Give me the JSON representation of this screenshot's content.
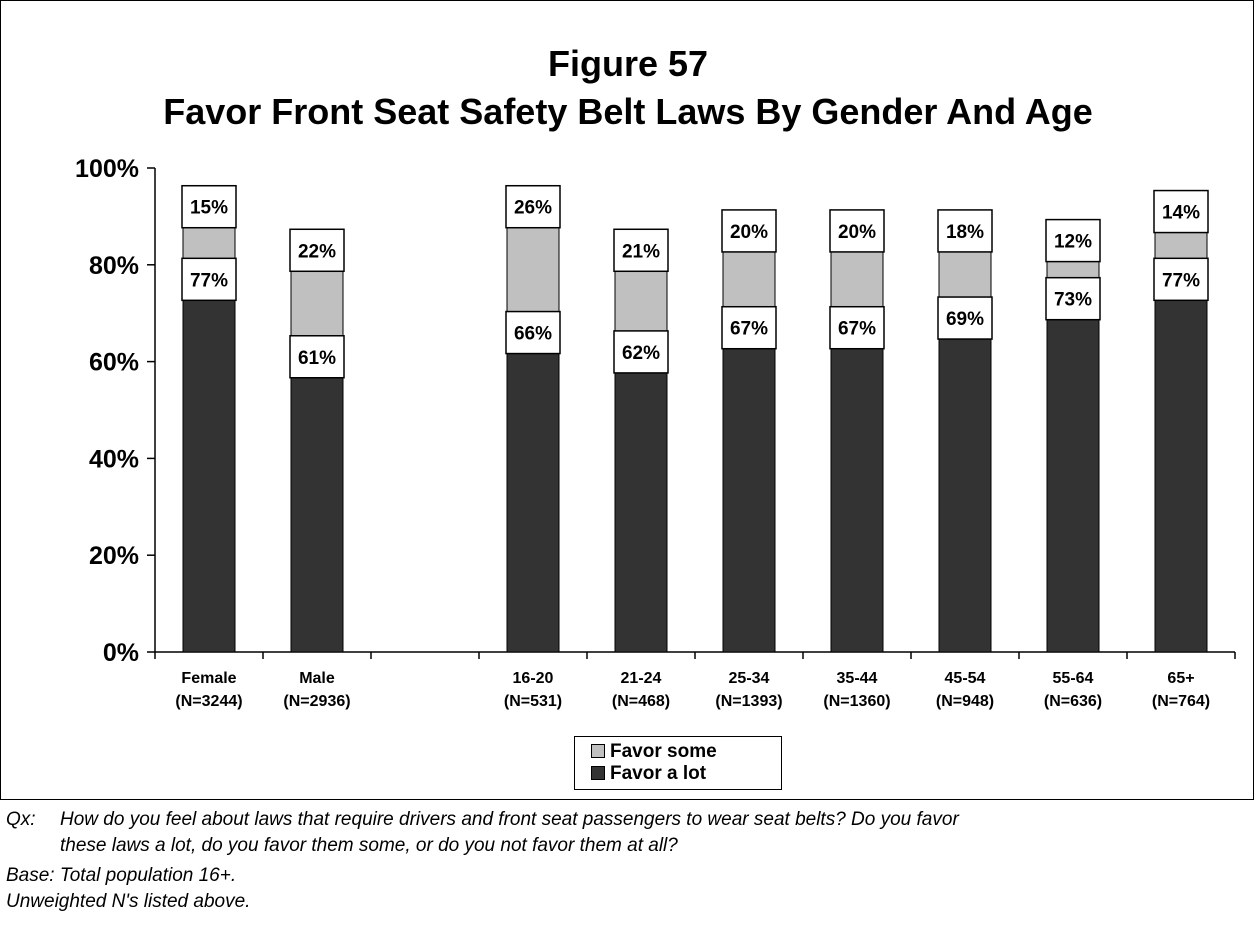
{
  "header": {
    "title_line1": "Figure 57",
    "title_line2": "Favor Front Seat Safety Belt Laws By Gender And Age"
  },
  "legend": {
    "items": [
      {
        "label": "Favor some",
        "color": "#c0c0c0"
      },
      {
        "label": "Favor a lot",
        "color": "#333333"
      }
    ]
  },
  "notes": {
    "q_label": "Qx:",
    "q_text_line1": "How do you feel about laws that require drivers and front seat passengers to wear seat belts?  Do you favor",
    "q_text_line2": "these laws a lot, do you favor them some, or do you not favor them at all?",
    "base": "Base:  Total population 16+.",
    "unweighted": "Unweighted N's listed above."
  },
  "chart_data": {
    "type": "bar",
    "stacked": true,
    "categories": [
      {
        "name": "Female",
        "n": "(N=3244)"
      },
      {
        "name": "Male",
        "n": "(N=2936)"
      },
      {
        "name": "",
        "n": ""
      },
      {
        "name": "16-20",
        "n": "(N=531)"
      },
      {
        "name": "21-24",
        "n": "(N=468)"
      },
      {
        "name": "25-34",
        "n": "(N=1393)"
      },
      {
        "name": "35-44",
        "n": "(N=1360)"
      },
      {
        "name": "45-54",
        "n": "(N=948)"
      },
      {
        "name": "55-64",
        "n": "(N=636)"
      },
      {
        "name": "65+",
        "n": "(N=764)"
      }
    ],
    "series": [
      {
        "name": "Favor a lot",
        "color": "#333333",
        "values": [
          77,
          61,
          null,
          66,
          62,
          67,
          67,
          69,
          73,
          77
        ]
      },
      {
        "name": "Favor some",
        "color": "#c0c0c0",
        "values": [
          15,
          22,
          null,
          26,
          21,
          20,
          20,
          18,
          12,
          14
        ]
      }
    ],
    "data_labels": {
      "favor_a_lot": [
        "77%",
        "61%",
        "",
        "66%",
        "62%",
        "67%",
        "67%",
        "69%",
        "73%",
        "77%"
      ],
      "favor_some": [
        "15%",
        "22%",
        "",
        "26%",
        "21%",
        "20%",
        "20%",
        "18%",
        "12%",
        "14%"
      ]
    },
    "y_ticks": [
      "0%",
      "20%",
      "40%",
      "60%",
      "80%",
      "100%"
    ],
    "ylim": [
      0,
      100
    ],
    "grid": false,
    "legend_position": "bottom-center"
  }
}
